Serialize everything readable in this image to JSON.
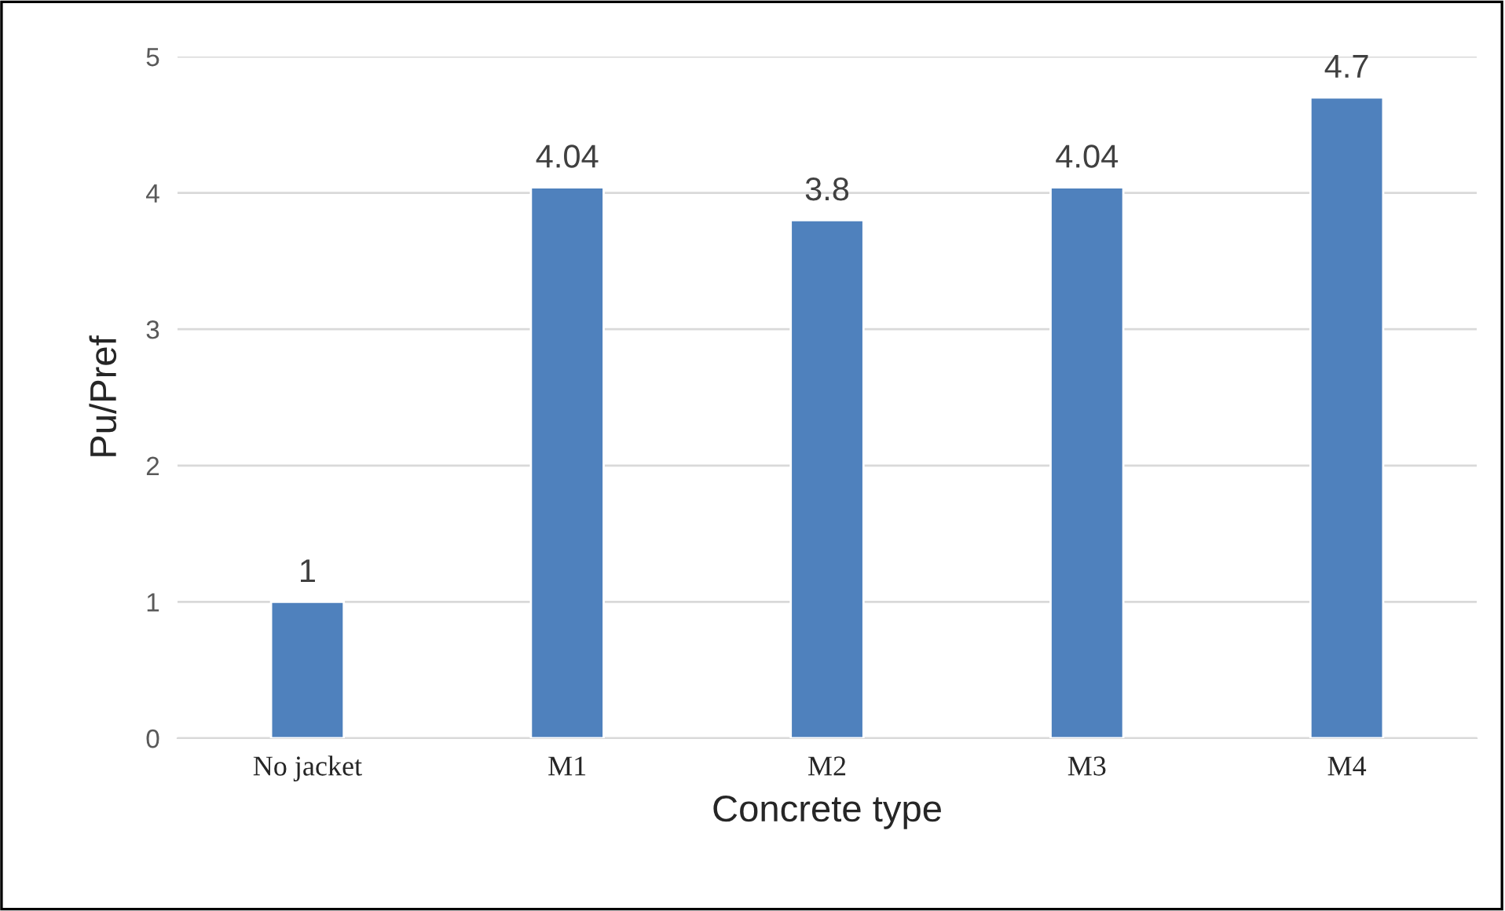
{
  "chart_data": {
    "type": "bar",
    "xlabel": "Concrete type",
    "ylabel": "Pu/Pref",
    "categories": [
      "No jacket",
      "M1",
      "M2",
      "M3",
      "M4"
    ],
    "values": [
      1,
      4.04,
      3.8,
      4.04,
      4.7
    ],
    "color": "#4f81bd",
    "ylim": [
      0,
      5
    ],
    "yticks": [
      0,
      1,
      2,
      3,
      4,
      5
    ],
    "grid": "y",
    "data_labels": true
  }
}
